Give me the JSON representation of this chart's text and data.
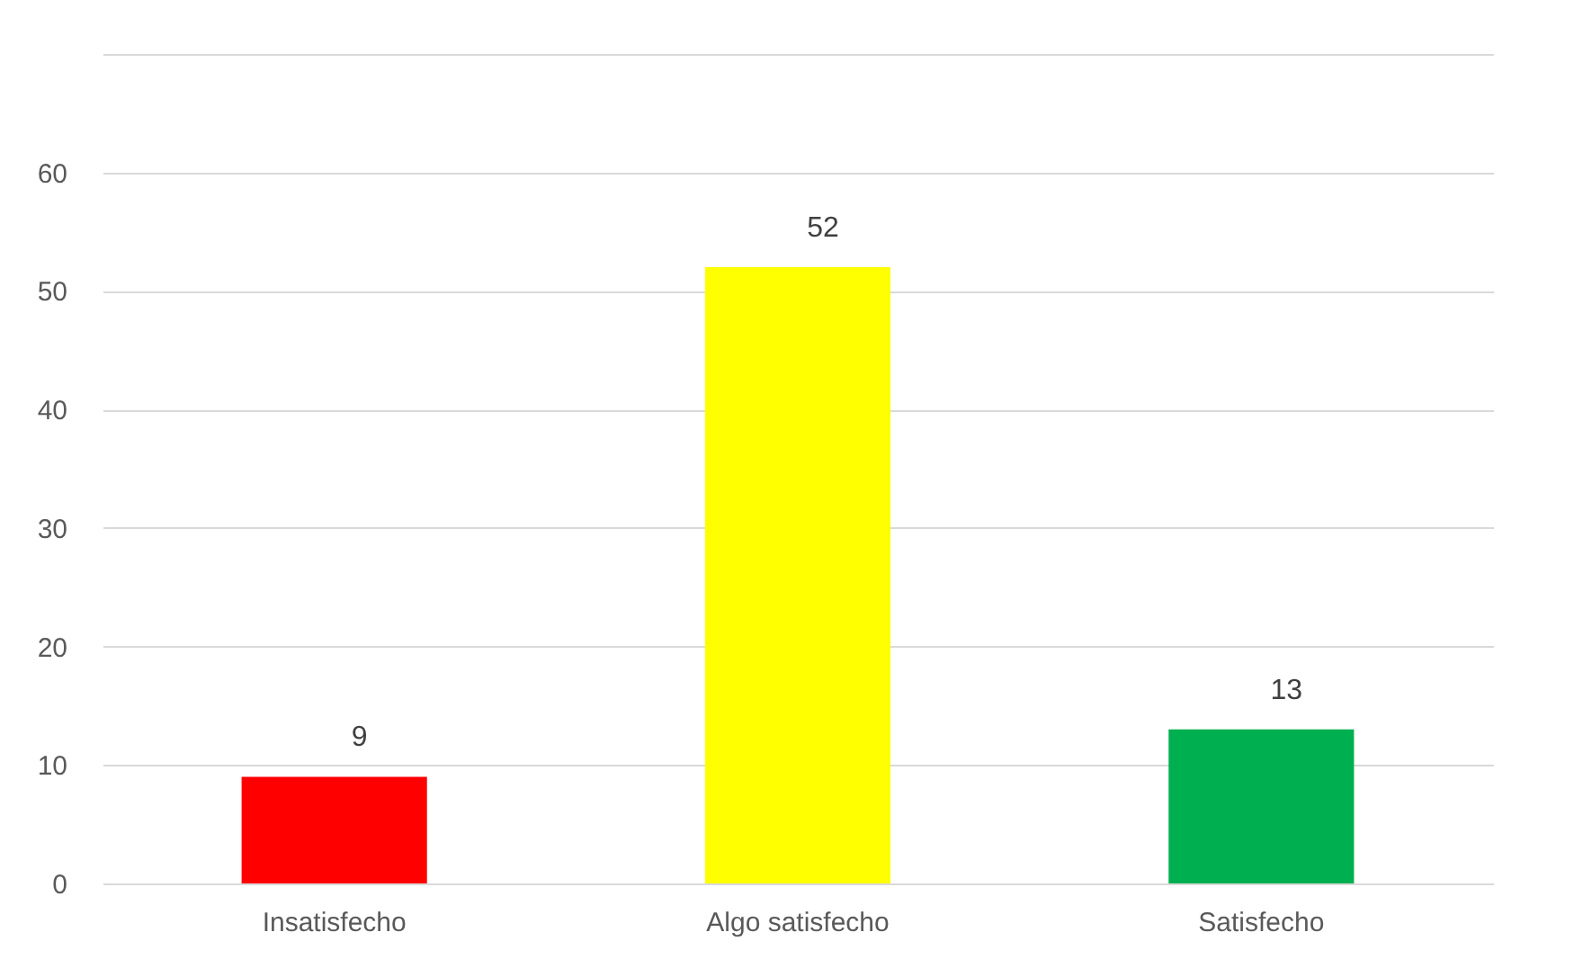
{
  "chart_data": {
    "type": "bar",
    "categories": [
      "Insatisfecho",
      "Algo satisfecho",
      "Satisfecho"
    ],
    "values": [
      9,
      52,
      13
    ],
    "colors": [
      "#ff0000",
      "#ffff00",
      "#00b050"
    ],
    "ylim": [
      0,
      70
    ],
    "yticks": [
      0,
      10,
      20,
      30,
      40,
      50,
      60,
      {
        "value": 70,
        "label": null
      }
    ],
    "grid": true,
    "data_labels": true
  }
}
